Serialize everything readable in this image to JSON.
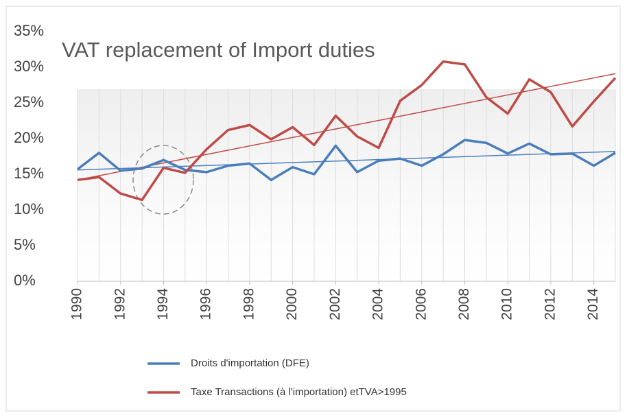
{
  "chart_data": {
    "type": "line",
    "title": "VAT replacement of Import duties",
    "x": [
      1990,
      1991,
      1992,
      1993,
      1994,
      1995,
      1996,
      1997,
      1998,
      1999,
      2000,
      2001,
      2002,
      2003,
      2004,
      2005,
      2006,
      2007,
      2008,
      2009,
      2010,
      2011,
      2012,
      2013,
      2014,
      2015
    ],
    "series": [
      {
        "name": "Droits d'importation (DFE)",
        "color": "#4a7ebb",
        "values": [
          15.7,
          18,
          15.5,
          15.8,
          17,
          15.6,
          15.3,
          16.2,
          16.5,
          14.2,
          16,
          15,
          19,
          15.3,
          16.9,
          17.2,
          16.2,
          17.8,
          19.8,
          19.4,
          17.9,
          19.3,
          17.8,
          17.9,
          16.2,
          18
        ],
        "trend": [
          15.6,
          18.2
        ]
      },
      {
        "name": "Taxe Transactions (à l'importation) etTVA>1995",
        "color": "#be4b48",
        "values": [
          14.2,
          14.6,
          12.3,
          11.4,
          15.9,
          15.2,
          18.5,
          21.2,
          21.9,
          19.9,
          21.6,
          19.1,
          23.2,
          20.3,
          18.7,
          25.3,
          27.5,
          30.8,
          30.4,
          25.8,
          23.5,
          28.3,
          26.5,
          21.7,
          25.2,
          28.5
        ],
        "trend": [
          14.2,
          29.1
        ]
      }
    ],
    "xlim": [
      1990,
      2015
    ],
    "xticks": [
      1990,
      1992,
      1994,
      1996,
      1998,
      2000,
      2002,
      2004,
      2006,
      2008,
      2010,
      2012,
      2014
    ],
    "ylim": [
      0,
      35
    ],
    "yticks": [
      {
        "value": 0,
        "label": "0%"
      },
      {
        "value": 5,
        "label": "5%"
      },
      {
        "value": 10,
        "label": "10%"
      },
      {
        "value": 15,
        "label": "15%"
      },
      {
        "value": 20,
        "label": "20%"
      },
      {
        "value": 25,
        "label": "25%"
      },
      {
        "value": 30,
        "label": "30%"
      },
      {
        "value": 35,
        "label": "35%"
      }
    ],
    "legend": "bottom"
  }
}
